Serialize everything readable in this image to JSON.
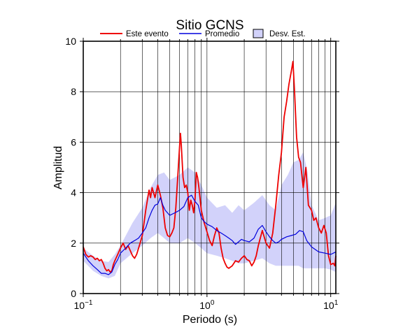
{
  "chart_data": {
    "type": "line",
    "title": "Sitio GCNS",
    "xlabel": "Periodo (s)",
    "ylabel": "Amplitud",
    "xscale": "log",
    "xlim": [
      0.1,
      11
    ],
    "ylim": [
      0,
      10
    ],
    "grid": true,
    "legend_position": "top",
    "x_ticks": [
      {
        "value": 0.1,
        "base": "10",
        "exp": "−1"
      },
      {
        "value": 1,
        "base": "10",
        "exp": "0"
      },
      {
        "value": 10,
        "base": "10",
        "exp": "1"
      }
    ],
    "y_ticks": [
      "0",
      "2",
      "4",
      "6",
      "8",
      "10"
    ],
    "series": [
      {
        "name": "Este evento",
        "color": "#ee0000",
        "points": [
          [
            0.1,
            1.85
          ],
          [
            0.105,
            1.55
          ],
          [
            0.11,
            1.45
          ],
          [
            0.115,
            1.5
          ],
          [
            0.12,
            1.45
          ],
          [
            0.125,
            1.35
          ],
          [
            0.13,
            1.4
          ],
          [
            0.135,
            1.3
          ],
          [
            0.14,
            1.35
          ],
          [
            0.145,
            1.2
          ],
          [
            0.15,
            1.0
          ],
          [
            0.155,
            0.9
          ],
          [
            0.16,
            0.95
          ],
          [
            0.165,
            0.85
          ],
          [
            0.17,
            0.9
          ],
          [
            0.175,
            1.15
          ],
          [
            0.18,
            1.3
          ],
          [
            0.19,
            1.55
          ],
          [
            0.2,
            1.8
          ],
          [
            0.21,
            2.0
          ],
          [
            0.22,
            1.75
          ],
          [
            0.23,
            1.9
          ],
          [
            0.24,
            1.7
          ],
          [
            0.25,
            1.5
          ],
          [
            0.26,
            1.4
          ],
          [
            0.27,
            1.55
          ],
          [
            0.28,
            1.8
          ],
          [
            0.3,
            2.3
          ],
          [
            0.32,
            3.3
          ],
          [
            0.34,
            4.1
          ],
          [
            0.35,
            3.8
          ],
          [
            0.36,
            4.2
          ],
          [
            0.38,
            3.8
          ],
          [
            0.4,
            4.3
          ],
          [
            0.42,
            3.9
          ],
          [
            0.44,
            3.4
          ],
          [
            0.46,
            2.6
          ],
          [
            0.48,
            2.3
          ],
          [
            0.5,
            2.25
          ],
          [
            0.52,
            2.4
          ],
          [
            0.54,
            2.6
          ],
          [
            0.56,
            3.4
          ],
          [
            0.58,
            4.6
          ],
          [
            0.6,
            5.8
          ],
          [
            0.61,
            6.35
          ],
          [
            0.62,
            5.9
          ],
          [
            0.64,
            4.6
          ],
          [
            0.66,
            4.2
          ],
          [
            0.68,
            4.3
          ],
          [
            0.7,
            4.0
          ],
          [
            0.72,
            3.3
          ],
          [
            0.74,
            3.7
          ],
          [
            0.76,
            3.5
          ],
          [
            0.78,
            3.2
          ],
          [
            0.8,
            3.7
          ],
          [
            0.82,
            4.8
          ],
          [
            0.84,
            4.6
          ],
          [
            0.86,
            4.2
          ],
          [
            0.9,
            3.3
          ],
          [
            0.95,
            2.8
          ],
          [
            1.0,
            2.45
          ],
          [
            1.05,
            2.1
          ],
          [
            1.1,
            1.9
          ],
          [
            1.15,
            2.3
          ],
          [
            1.2,
            2.6
          ],
          [
            1.25,
            2.4
          ],
          [
            1.3,
            1.8
          ],
          [
            1.35,
            1.4
          ],
          [
            1.4,
            1.2
          ],
          [
            1.45,
            1.05
          ],
          [
            1.5,
            1.0
          ],
          [
            1.6,
            1.1
          ],
          [
            1.7,
            1.3
          ],
          [
            1.8,
            1.25
          ],
          [
            1.9,
            1.4
          ],
          [
            2.0,
            1.5
          ],
          [
            2.1,
            1.35
          ],
          [
            2.2,
            1.3
          ],
          [
            2.3,
            1.1
          ],
          [
            2.4,
            1.25
          ],
          [
            2.5,
            1.5
          ],
          [
            2.6,
            1.9
          ],
          [
            2.8,
            2.5
          ],
          [
            3.0,
            2.0
          ],
          [
            3.2,
            1.8
          ],
          [
            3.4,
            2.4
          ],
          [
            3.6,
            3.5
          ],
          [
            3.8,
            4.7
          ],
          [
            4.0,
            5.6
          ],
          [
            4.2,
            7.0
          ],
          [
            4.4,
            7.6
          ],
          [
            4.6,
            8.3
          ],
          [
            4.8,
            8.8
          ],
          [
            4.95,
            9.2
          ],
          [
            5.1,
            8.0
          ],
          [
            5.3,
            6.2
          ],
          [
            5.5,
            5.4
          ],
          [
            5.7,
            5.2
          ],
          [
            6.0,
            4.2
          ],
          [
            6.3,
            5.0
          ],
          [
            6.6,
            3.5
          ],
          [
            7.0,
            3.3
          ],
          [
            7.3,
            2.9
          ],
          [
            7.6,
            3.0
          ],
          [
            8.0,
            2.6
          ],
          [
            8.4,
            2.4
          ],
          [
            8.8,
            2.7
          ],
          [
            9.2,
            2.4
          ],
          [
            9.6,
            1.5
          ],
          [
            10.0,
            1.15
          ],
          [
            10.5,
            1.2
          ],
          [
            10.8,
            1.1
          ],
          [
            11.0,
            1.5
          ]
        ]
      },
      {
        "name": "Promedio",
        "color": "#0000dd",
        "points": [
          [
            0.1,
            1.6
          ],
          [
            0.11,
            1.3
          ],
          [
            0.12,
            1.1
          ],
          [
            0.13,
            0.95
          ],
          [
            0.14,
            0.8
          ],
          [
            0.15,
            0.8
          ],
          [
            0.16,
            0.75
          ],
          [
            0.17,
            0.85
          ],
          [
            0.18,
            1.15
          ],
          [
            0.19,
            1.35
          ],
          [
            0.2,
            1.6
          ],
          [
            0.22,
            1.8
          ],
          [
            0.24,
            2.0
          ],
          [
            0.26,
            2.1
          ],
          [
            0.28,
            2.2
          ],
          [
            0.3,
            2.4
          ],
          [
            0.32,
            2.6
          ],
          [
            0.34,
            3.0
          ],
          [
            0.36,
            3.3
          ],
          [
            0.38,
            3.5
          ],
          [
            0.4,
            3.55
          ],
          [
            0.42,
            3.8
          ],
          [
            0.44,
            3.5
          ],
          [
            0.46,
            3.3
          ],
          [
            0.5,
            3.1
          ],
          [
            0.55,
            3.2
          ],
          [
            0.6,
            3.3
          ],
          [
            0.65,
            3.45
          ],
          [
            0.7,
            3.8
          ],
          [
            0.75,
            3.9
          ],
          [
            0.8,
            3.65
          ],
          [
            0.85,
            3.5
          ],
          [
            0.9,
            3.0
          ],
          [
            0.95,
            2.85
          ],
          [
            1.0,
            2.75
          ],
          [
            1.1,
            2.65
          ],
          [
            1.2,
            2.5
          ],
          [
            1.3,
            2.4
          ],
          [
            1.4,
            2.3
          ],
          [
            1.5,
            2.2
          ],
          [
            1.6,
            2.1
          ],
          [
            1.7,
            1.95
          ],
          [
            1.8,
            2.05
          ],
          [
            1.9,
            2.15
          ],
          [
            2.0,
            2.1
          ],
          [
            2.2,
            2.05
          ],
          [
            2.4,
            2.2
          ],
          [
            2.6,
            2.55
          ],
          [
            2.8,
            2.7
          ],
          [
            3.0,
            2.45
          ],
          [
            3.2,
            2.25
          ],
          [
            3.4,
            2.1
          ],
          [
            3.6,
            2.0
          ],
          [
            3.8,
            2.05
          ],
          [
            4.0,
            2.15
          ],
          [
            4.4,
            2.25
          ],
          [
            4.8,
            2.3
          ],
          [
            5.2,
            2.35
          ],
          [
            5.6,
            2.5
          ],
          [
            6.0,
            2.45
          ],
          [
            6.4,
            2.1
          ],
          [
            7.0,
            1.85
          ],
          [
            8.0,
            1.65
          ],
          [
            9.0,
            1.6
          ],
          [
            10.0,
            1.55
          ],
          [
            11.0,
            1.65
          ]
        ]
      }
    ],
    "band": {
      "name": "Desv. Est.",
      "color": "#d2d2fa",
      "x": [
        0.1,
        0.12,
        0.14,
        0.16,
        0.18,
        0.2,
        0.25,
        0.3,
        0.35,
        0.4,
        0.45,
        0.5,
        0.6,
        0.7,
        0.8,
        0.9,
        1.0,
        1.2,
        1.4,
        1.6,
        1.8,
        2.0,
        2.4,
        2.8,
        3.2,
        3.6,
        4.0,
        4.5,
        5.0,
        5.5,
        6.0,
        6.5,
        7.0,
        8.0,
        9.0,
        10.0,
        11.0
      ],
      "upper": [
        1.8,
        1.5,
        1.3,
        1.25,
        1.55,
        1.9,
        2.8,
        3.4,
        4.2,
        4.7,
        4.8,
        4.5,
        4.7,
        5.0,
        4.8,
        4.3,
        3.8,
        3.4,
        3.5,
        3.2,
        3.5,
        3.3,
        3.6,
        3.9,
        3.5,
        3.3,
        4.3,
        4.7,
        5.2,
        5.3,
        5.6,
        4.8,
        3.5,
        2.9,
        3.0,
        3.1,
        3.6
      ],
      "lower": [
        1.3,
        0.9,
        0.7,
        0.6,
        0.7,
        1.2,
        1.6,
        1.9,
        2.2,
        2.4,
        2.2,
        2.0,
        2.0,
        2.2,
        2.0,
        1.8,
        1.6,
        1.5,
        1.4,
        1.3,
        1.2,
        1.2,
        1.3,
        1.4,
        1.2,
        1.1,
        1.1,
        1.1,
        1.1,
        1.1,
        1.0,
        1.0,
        1.0,
        1.0,
        1.0,
        0.95,
        0.85
      ]
    }
  }
}
